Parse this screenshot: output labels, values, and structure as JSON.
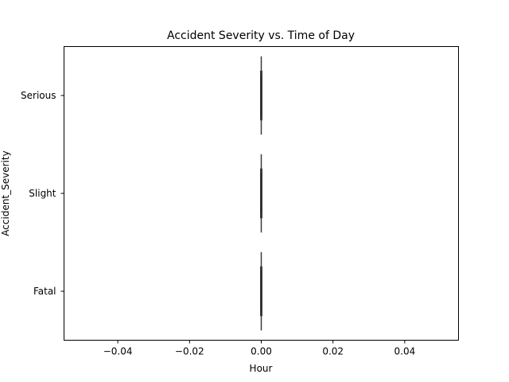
{
  "chart_data": {
    "type": "box",
    "orientation": "horizontal",
    "title": "Accident Severity vs. Time of Day",
    "xlabel": "Hour",
    "ylabel": "Accident_Severity",
    "categories": [
      "Serious",
      "Slight",
      "Fatal"
    ],
    "xlim": [
      -0.055,
      0.055
    ],
    "xticks": [
      -0.04,
      -0.02,
      0.0,
      0.02,
      0.04
    ],
    "xtick_labels": [
      "−0.04",
      "−0.02",
      "0.00",
      "0.02",
      "0.04"
    ],
    "boxes": [
      {
        "category": "Serious",
        "min": 0,
        "q1": 0,
        "median": 0,
        "q3": 0,
        "max": 0
      },
      {
        "category": "Slight",
        "min": 0,
        "q1": 0,
        "median": 0,
        "q3": 0,
        "max": 0
      },
      {
        "category": "Fatal",
        "min": 0,
        "q1": 0,
        "median": 0,
        "q3": 0,
        "max": 0
      }
    ],
    "grid": false,
    "colors": {
      "box": "#3a3a3a",
      "axes": "#000000"
    }
  }
}
